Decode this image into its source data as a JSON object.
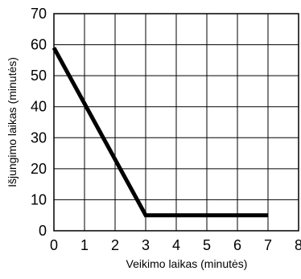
{
  "chart_data": {
    "type": "line",
    "xlabel": "Veikimo laikas (minutės)",
    "ylabel": "Išjungimo laikas (minutės)",
    "xlim": [
      0,
      8
    ],
    "ylim": [
      0,
      70
    ],
    "x_ticks": [
      0,
      1,
      2,
      3,
      4,
      5,
      6,
      7,
      8
    ],
    "y_ticks": [
      0,
      10,
      20,
      30,
      40,
      50,
      60,
      70
    ],
    "grid": true,
    "series": [
      {
        "x": [
          0,
          3,
          7
        ],
        "y": [
          59,
          5,
          5
        ],
        "color": "#000000"
      }
    ]
  }
}
